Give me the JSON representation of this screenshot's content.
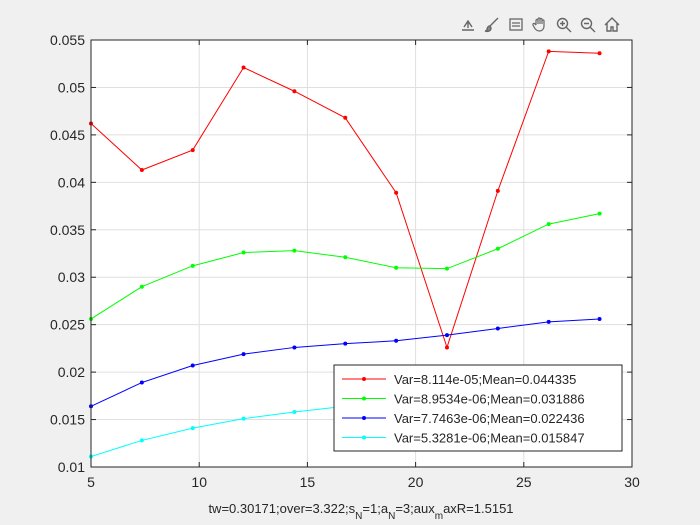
{
  "toolbar": {
    "icons": [
      "export-icon",
      "brush-icon",
      "datatip-icon",
      "pan-hand-icon",
      "zoom-in-icon",
      "zoom-out-icon",
      "home-icon"
    ]
  },
  "chart_data": {
    "type": "line",
    "title": "",
    "xlabel_parts": [
      {
        "t": "tw=0.30171;over=3.322;s",
        "sub": false
      },
      {
        "t": "N",
        "sub": true
      },
      {
        "t": "=1;a",
        "sub": false
      },
      {
        "t": "N",
        "sub": true
      },
      {
        "t": "=3;aux",
        "sub": false
      },
      {
        "t": "m",
        "sub": true
      },
      {
        "t": "axR=1.5151",
        "sub": false
      }
    ],
    "ylabel": "",
    "xlim": [
      5,
      30
    ],
    "ylim": [
      0.01,
      0.055
    ],
    "xticks": [
      5,
      10,
      15,
      20,
      25,
      30
    ],
    "xtick_labels": [
      "5",
      "10",
      "15",
      "20",
      "25",
      "30"
    ],
    "yticks": [
      0.01,
      0.015,
      0.02,
      0.025,
      0.03,
      0.035,
      0.04,
      0.045,
      0.05,
      0.055
    ],
    "ytick_labels": [
      "0.01",
      "0.015",
      "0.02",
      "0.025",
      "0.03",
      "0.035",
      "0.04",
      "0.045",
      "0.05",
      "0.055"
    ],
    "grid": true,
    "legend_position": "bottom-right",
    "x": [
      5.0,
      7.35,
      9.7,
      12.05,
      14.4,
      16.75,
      19.1,
      21.45,
      23.8,
      26.15,
      28.5
    ],
    "series": [
      {
        "name": "Var=8.114e-05;Mean=0.044335",
        "color": "#ff0000",
        "values": [
          0.0462,
          0.0413,
          0.0434,
          0.0521,
          0.0496,
          0.0468,
          0.0389,
          0.0226,
          0.0391,
          0.0538,
          0.0536
        ]
      },
      {
        "name": "Var=8.9534e-06;Mean=0.031886",
        "color": "#00ff00",
        "values": [
          0.0256,
          0.029,
          0.0312,
          0.0326,
          0.0328,
          0.0321,
          0.031,
          0.0309,
          0.033,
          0.0356,
          0.0367
        ]
      },
      {
        "name": "Var=7.7463e-06;Mean=0.022436",
        "color": "#0000ff",
        "values": [
          0.0164,
          0.0189,
          0.0207,
          0.0219,
          0.0226,
          0.023,
          0.0233,
          0.0239,
          0.0246,
          0.0253,
          0.0256
        ]
      },
      {
        "name": "Var=5.3281e-06;Mean=0.015847",
        "color": "#00ffff",
        "values": [
          0.0111,
          0.0128,
          0.0141,
          0.0151,
          0.0158,
          0.0164,
          0.0168,
          0.0174,
          0.0179,
          0.0185,
          0.019
        ]
      }
    ]
  }
}
